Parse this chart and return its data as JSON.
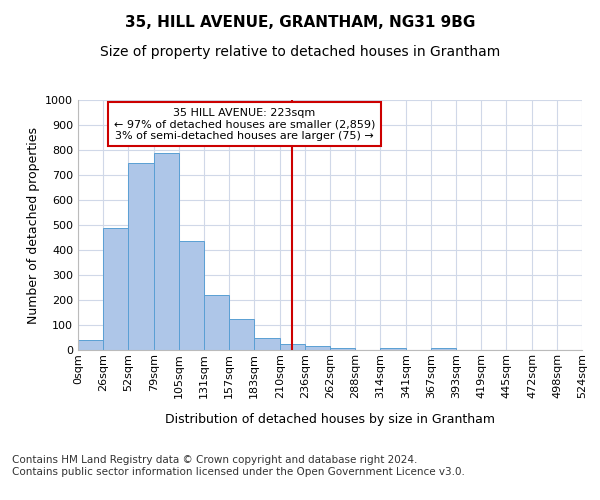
{
  "title": "35, HILL AVENUE, GRANTHAM, NG31 9BG",
  "subtitle": "Size of property relative to detached houses in Grantham",
  "xlabel": "Distribution of detached houses by size in Grantham",
  "ylabel": "Number of detached properties",
  "bin_edges": [
    0,
    26,
    52,
    79,
    105,
    131,
    157,
    183,
    210,
    236,
    262,
    288,
    314,
    341,
    367,
    393,
    419,
    445,
    472,
    498,
    524
  ],
  "bar_heights": [
    40,
    490,
    750,
    790,
    435,
    220,
    125,
    50,
    25,
    15,
    10,
    0,
    8,
    0,
    7,
    0,
    0,
    0,
    0,
    0
  ],
  "bar_color": "#aec6e8",
  "bar_edgecolor": "#5a9fd4",
  "subject_value": 223,
  "subject_line_color": "#cc0000",
  "annotation_line1": "35 HILL AVENUE: 223sqm",
  "annotation_line2": "← 97% of detached houses are smaller (2,859)",
  "annotation_line3": "3% of semi-detached houses are larger (75) →",
  "annotation_box_edgecolor": "#cc0000",
  "annotation_box_facecolor": "#ffffff",
  "ylim": [
    0,
    1000
  ],
  "yticks": [
    0,
    100,
    200,
    300,
    400,
    500,
    600,
    700,
    800,
    900,
    1000
  ],
  "tick_labels": [
    "0sqm",
    "26sqm",
    "52sqm",
    "79sqm",
    "105sqm",
    "131sqm",
    "157sqm",
    "183sqm",
    "210sqm",
    "236sqm",
    "262sqm",
    "288sqm",
    "314sqm",
    "341sqm",
    "367sqm",
    "393sqm",
    "419sqm",
    "445sqm",
    "472sqm",
    "498sqm",
    "524sqm"
  ],
  "footer_text": "Contains HM Land Registry data © Crown copyright and database right 2024.\nContains public sector information licensed under the Open Government Licence v3.0.",
  "background_color": "#ffffff",
  "grid_color": "#d0d8e8",
  "title_fontsize": 11,
  "subtitle_fontsize": 10,
  "ylabel_fontsize": 9,
  "xlabel_fontsize": 9,
  "tick_fontsize": 8,
  "annotation_fontsize": 8,
  "footer_fontsize": 7.5
}
